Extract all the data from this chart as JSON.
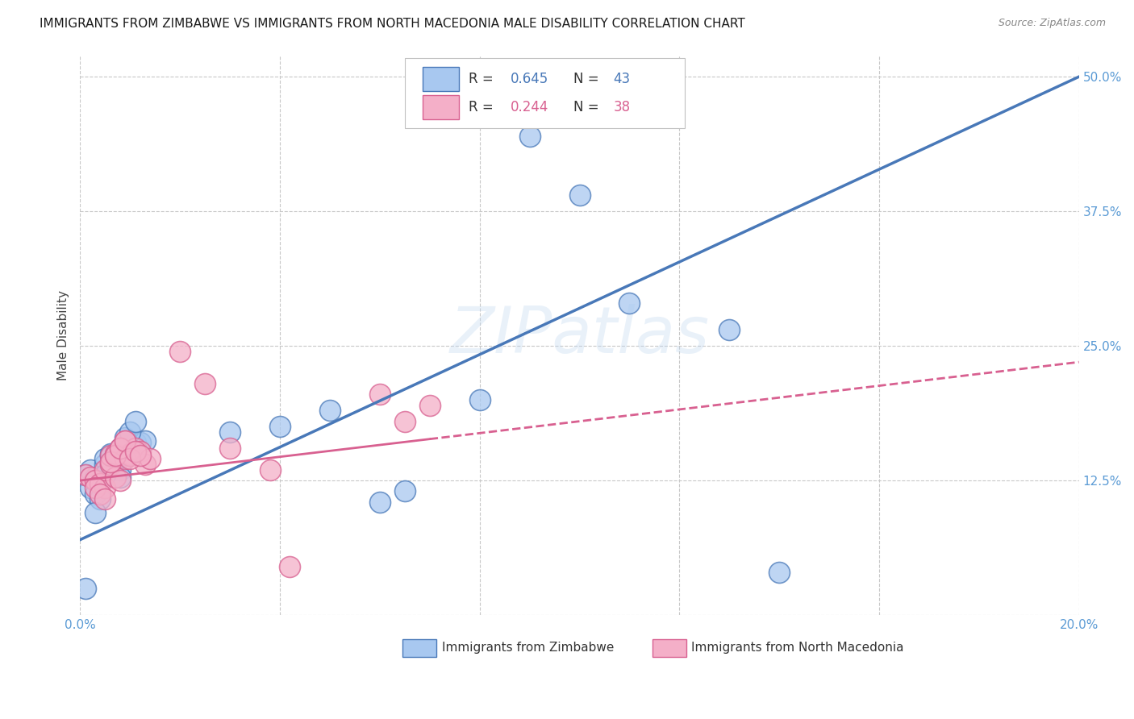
{
  "title": "IMMIGRANTS FROM ZIMBABWE VS IMMIGRANTS FROM NORTH MACEDONIA MALE DISABILITY CORRELATION CHART",
  "source": "Source: ZipAtlas.com",
  "tick_color": "#5b9bd5",
  "ylabel": "Male Disability",
  "xlim": [
    0.0,
    0.2
  ],
  "ylim": [
    0.0,
    0.52
  ],
  "x_ticks": [
    0.0,
    0.04,
    0.08,
    0.12,
    0.16,
    0.2
  ],
  "x_tick_labels": [
    "0.0%",
    "",
    "",
    "",
    "",
    "20.0%"
  ],
  "y_ticks": [
    0.0,
    0.125,
    0.25,
    0.375,
    0.5
  ],
  "y_tick_labels": [
    "",
    "12.5%",
    "25.0%",
    "37.5%",
    "50.0%"
  ],
  "legend_r1": "R = 0.645",
  "legend_n1": "N = 43",
  "legend_r2": "R = 0.244",
  "legend_n2": "N = 38",
  "color_blue": "#a8c8f0",
  "color_pink": "#f4afc8",
  "edge_blue": "#4878b8",
  "edge_pink": "#d86090",
  "line_blue": "#4878b8",
  "line_pink": "#d86090",
  "watermark": "ZIPatlas",
  "background": "#ffffff",
  "grid_color": "#c8c8c8",
  "blue_line_intercept": 0.07,
  "blue_line_slope": 2.15,
  "pink_line_intercept": 0.125,
  "pink_line_slope": 0.55,
  "zimbabwe_x": [
    0.001,
    0.002,
    0.003,
    0.004,
    0.004,
    0.005,
    0.005,
    0.006,
    0.006,
    0.007,
    0.007,
    0.008,
    0.008,
    0.009,
    0.009,
    0.01,
    0.01,
    0.011,
    0.012,
    0.013,
    0.002,
    0.003,
    0.004,
    0.005,
    0.006,
    0.007,
    0.008,
    0.009,
    0.01,
    0.011,
    0.03,
    0.04,
    0.05,
    0.06,
    0.065,
    0.08,
    0.09,
    0.1,
    0.11,
    0.13,
    0.14,
    0.003,
    0.001
  ],
  "zimbabwe_y": [
    0.13,
    0.135,
    0.128,
    0.125,
    0.122,
    0.14,
    0.145,
    0.148,
    0.15,
    0.138,
    0.142,
    0.135,
    0.128,
    0.15,
    0.148,
    0.155,
    0.152,
    0.16,
    0.16,
    0.162,
    0.118,
    0.112,
    0.108,
    0.13,
    0.14,
    0.145,
    0.155,
    0.165,
    0.17,
    0.18,
    0.17,
    0.175,
    0.19,
    0.105,
    0.115,
    0.2,
    0.445,
    0.39,
    0.29,
    0.265,
    0.04,
    0.095,
    0.025
  ],
  "macedonia_x": [
    0.001,
    0.002,
    0.003,
    0.004,
    0.005,
    0.005,
    0.006,
    0.006,
    0.007,
    0.007,
    0.008,
    0.008,
    0.009,
    0.009,
    0.01,
    0.01,
    0.011,
    0.012,
    0.013,
    0.014,
    0.003,
    0.004,
    0.005,
    0.006,
    0.007,
    0.008,
    0.009,
    0.01,
    0.011,
    0.012,
    0.02,
    0.025,
    0.03,
    0.06,
    0.065,
    0.07,
    0.038,
    0.042
  ],
  "macedonia_y": [
    0.13,
    0.128,
    0.125,
    0.122,
    0.118,
    0.135,
    0.14,
    0.148,
    0.15,
    0.128,
    0.125,
    0.155,
    0.162,
    0.145,
    0.15,
    0.148,
    0.155,
    0.152,
    0.14,
    0.145,
    0.118,
    0.112,
    0.108,
    0.142,
    0.148,
    0.155,
    0.162,
    0.145,
    0.152,
    0.148,
    0.245,
    0.215,
    0.155,
    0.205,
    0.18,
    0.195,
    0.135,
    0.045
  ]
}
